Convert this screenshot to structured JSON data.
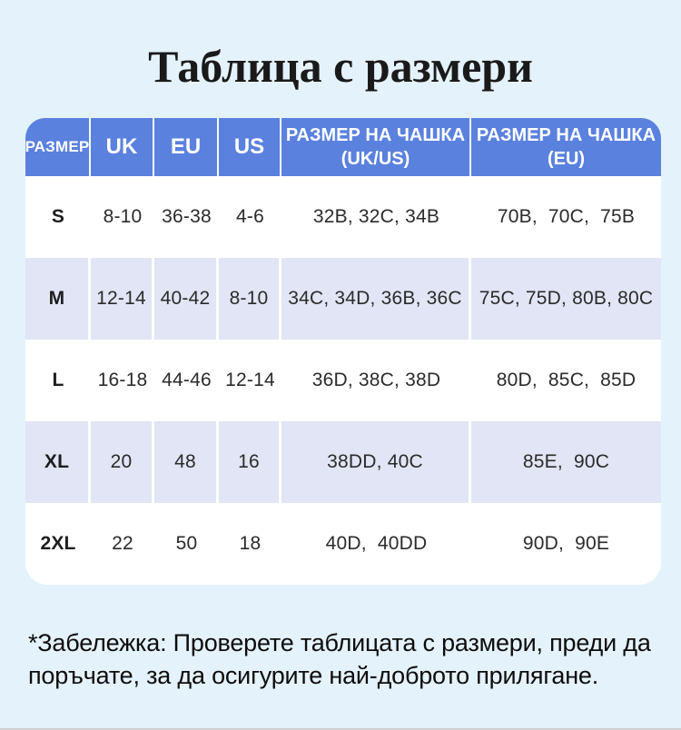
{
  "chart_data": {
    "type": "table",
    "title": "Таблица с размери",
    "columns": [
      "РАЗМЕР",
      "UK",
      "EU",
      "US",
      "РАЗМЕР НА ЧАШКА\n(UK/US)",
      "РАЗМЕР НА ЧАШКА\n(EU)"
    ],
    "rows": [
      [
        "S",
        "8-10",
        "36-38",
        "4-6",
        "32B, 32C, 34B",
        "70B,  70C,  75B"
      ],
      [
        "M",
        "12-14",
        "40-42",
        "8-10",
        "34C, 34D, 36B, 36C",
        "75C, 75D, 80B, 80C"
      ],
      [
        "L",
        "16-18",
        "44-46",
        "12-14",
        "36D, 38C, 38D",
        "80D,  85C,  85D"
      ],
      [
        "XL",
        "20",
        "48",
        "16",
        "38DD, 40C",
        "85E,  90C"
      ],
      [
        "2XL",
        "22",
        "50",
        "18",
        "40D,  40DD",
        "90D,  90E"
      ]
    ],
    "note": "*Забележка: Проверете таблицата с размери, преди да\nпоръчате, за да осигурите най-доброто прилягане.",
    "layout": {
      "header_position": "top",
      "grid": "off",
      "alternating_rows": true
    },
    "colors": {
      "page_background": "#e4f2fb",
      "header_background": "#5b81de",
      "header_text": "#ffffff",
      "row_alt_background": "#e1e5f5",
      "row_background": "#ffffff",
      "cell_text": "#2b2b2b",
      "title_text": "#1a1a1a"
    }
  }
}
